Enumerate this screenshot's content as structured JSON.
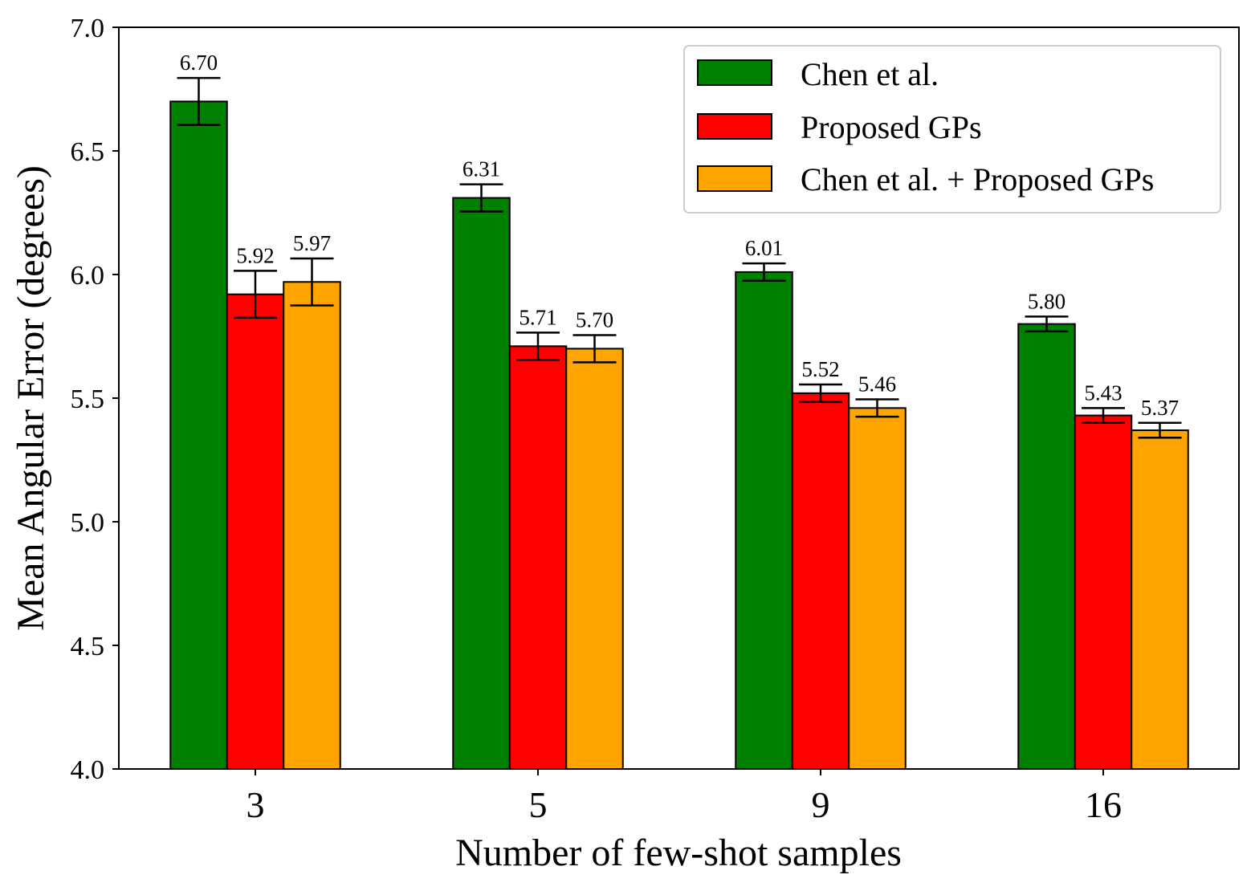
{
  "chart_data": {
    "type": "bar",
    "title": "",
    "xlabel": "Number of few-shot samples",
    "ylabel": "Mean Angular Error (degrees)",
    "categories": [
      "3",
      "5",
      "9",
      "16"
    ],
    "ylim": [
      4.0,
      7.0
    ],
    "yticks": [
      4.0,
      4.5,
      5.0,
      5.5,
      6.0,
      6.5,
      7.0
    ],
    "ytick_labels": [
      "4.0",
      "4.5",
      "5.0",
      "5.5",
      "6.0",
      "6.5",
      "7.0"
    ],
    "grid": false,
    "legend_position": "top-right",
    "series": [
      {
        "name": "Chen et al.",
        "color": "#008000",
        "values": [
          6.7,
          6.31,
          6.01,
          5.8
        ],
        "labels": [
          "6.70",
          "6.31",
          "6.01",
          "5.80"
        ],
        "errors": [
          0.095,
          0.055,
          0.035,
          0.03
        ]
      },
      {
        "name": "Proposed GPs",
        "color": "#ff0000",
        "values": [
          5.92,
          5.71,
          5.52,
          5.43
        ],
        "labels": [
          "5.92",
          "5.71",
          "5.52",
          "5.43"
        ],
        "errors": [
          0.095,
          0.055,
          0.035,
          0.03
        ]
      },
      {
        "name": "Chen et al. + Proposed GPs",
        "color": "#ffa500",
        "values": [
          5.97,
          5.7,
          5.46,
          5.37
        ],
        "labels": [
          "5.97",
          "5.70",
          "5.46",
          "5.37"
        ],
        "errors": [
          0.095,
          0.055,
          0.035,
          0.03
        ]
      }
    ]
  }
}
